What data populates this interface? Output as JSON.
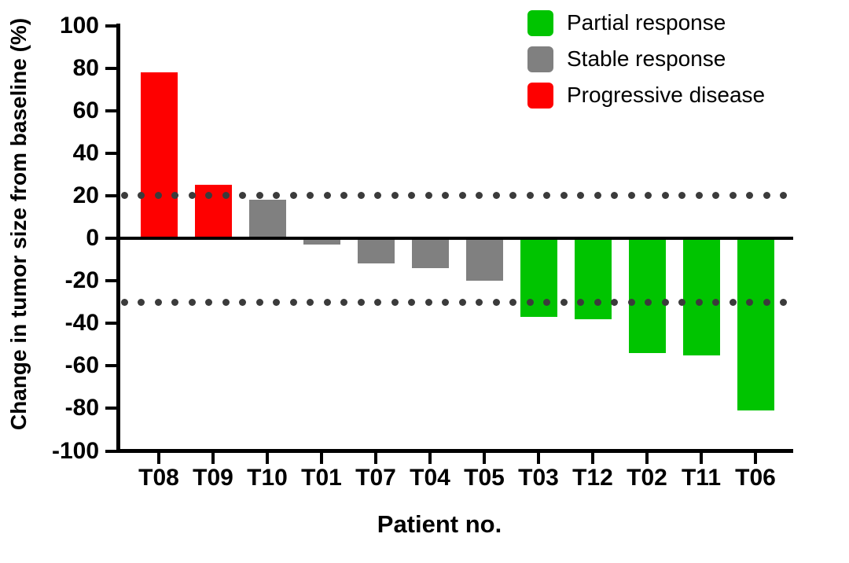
{
  "chart_data": {
    "type": "bar",
    "variant": "waterfall",
    "title": "",
    "xlabel": "Patient no.",
    "ylabel": "Change in tumor size from baseline (%)",
    "ylim": [
      -100,
      100
    ],
    "ytick_step": 20,
    "yticks": [
      100,
      80,
      60,
      40,
      20,
      0,
      -20,
      -40,
      -60,
      -80,
      -100
    ],
    "categories": [
      "T08",
      "T09",
      "T10",
      "T01",
      "T07",
      "T04",
      "T05",
      "T03",
      "T12",
      "T02",
      "T11",
      "T06"
    ],
    "values": [
      78,
      25,
      18,
      -3,
      -12,
      -14,
      -20,
      -37,
      -38,
      -54,
      -55,
      -81
    ],
    "responses": [
      "progressive",
      "progressive",
      "stable",
      "stable",
      "stable",
      "stable",
      "stable",
      "partial",
      "partial",
      "partial",
      "partial",
      "partial"
    ],
    "palette": {
      "partial": "#00c400",
      "stable": "#808080",
      "progressive": "#fe0000"
    },
    "reference_lines": [
      20,
      -30
    ],
    "reference_line_style": "dotted",
    "reference_line_color": "#3b3b3b",
    "axis_color": "#000000",
    "grid": false,
    "legend_position": "top-right",
    "legend": [
      {
        "label": "Partial response",
        "response": "partial",
        "color": "#00c400"
      },
      {
        "label": "Stable response",
        "response": "stable",
        "color": "#808080"
      },
      {
        "label": "Progressive disease",
        "response": "progressive",
        "color": "#fe0000"
      }
    ]
  }
}
